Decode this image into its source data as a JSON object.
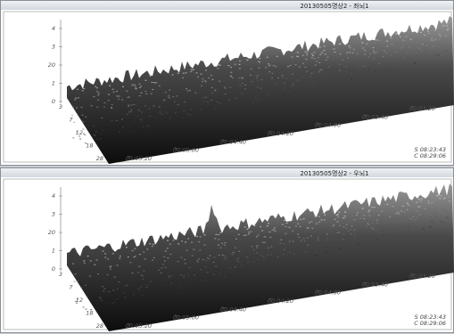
{
  "windows": [
    {
      "title": "20130505명상2 - 좌뇌1",
      "z_labels": [
        "4",
        "3",
        "20",
        "1",
        "0"
      ],
      "depth_labels": [
        "3",
        "7",
        "12",
        "18",
        "28"
      ],
      "time_labels": [
        "00:05:20",
        "00:05:00",
        "00:04:40",
        "00:04:20",
        "00:04:00",
        "00:03:40",
        "00:03:20"
      ],
      "status": [
        "S 08:23:43",
        "C 08:29:06"
      ]
    },
    {
      "title": "20130505명상2 - 우뇌1",
      "z_labels": [
        "4",
        "3",
        "20",
        "1",
        "0"
      ],
      "depth_labels": [
        "3",
        "7",
        "12",
        "18",
        "28"
      ],
      "time_labels": [
        "00:05:20",
        "00:05:00",
        "00:04:40",
        "00:04:20",
        "00:04:00",
        "00:03:40",
        "00:03:20"
      ],
      "status": [
        "S 08:23:43",
        "C 08:29:06"
      ]
    }
  ]
}
